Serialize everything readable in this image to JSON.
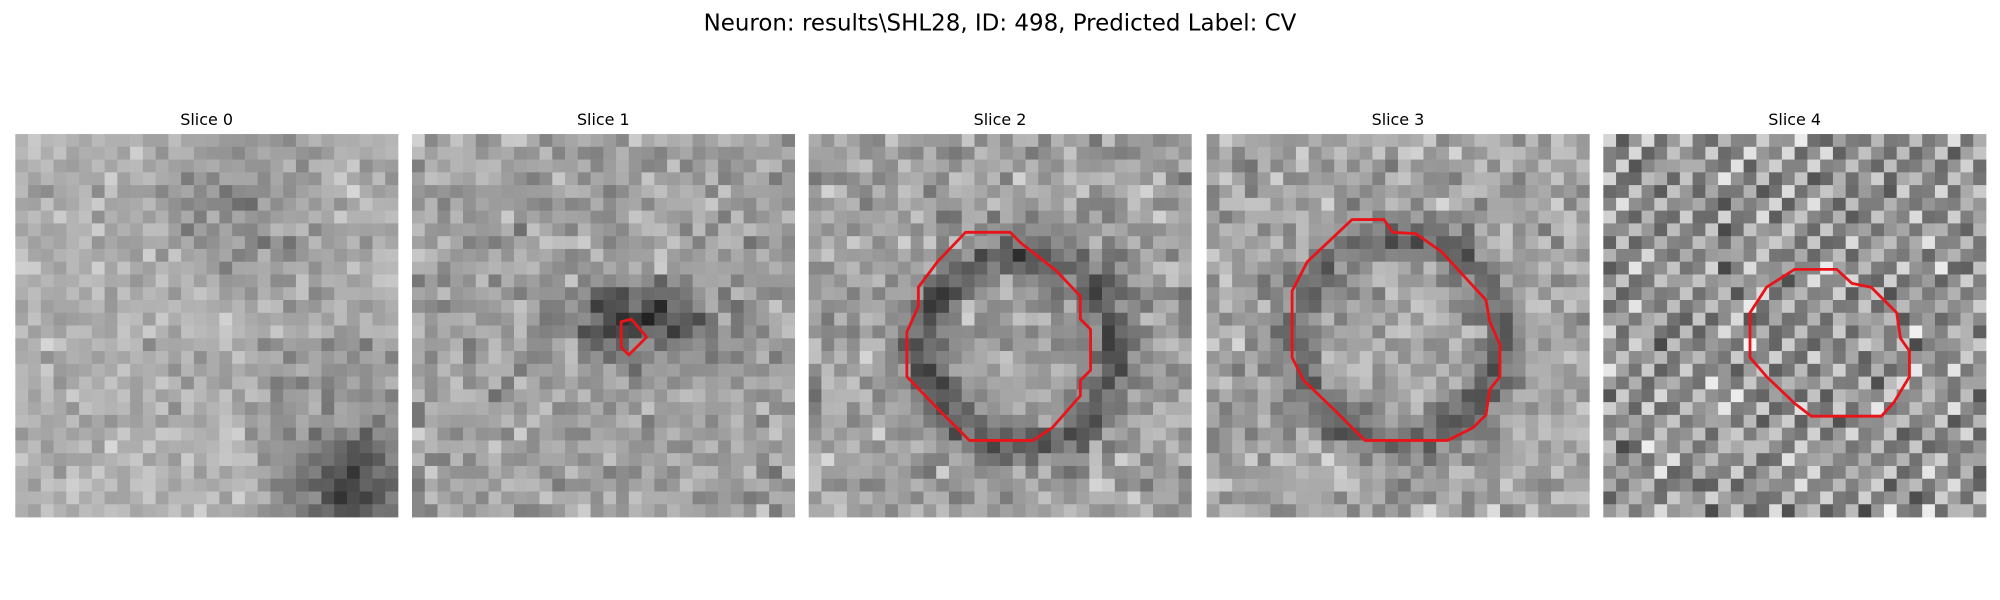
{
  "title": "Neuron: results\\SHL28, ID: 498, Predicted Label: CV",
  "panels": [
    {
      "title": "Slice 0"
    },
    {
      "title": "Slice 1"
    },
    {
      "title": "Slice 2"
    },
    {
      "title": "Slice 3"
    },
    {
      "title": "Slice 4"
    }
  ]
}
